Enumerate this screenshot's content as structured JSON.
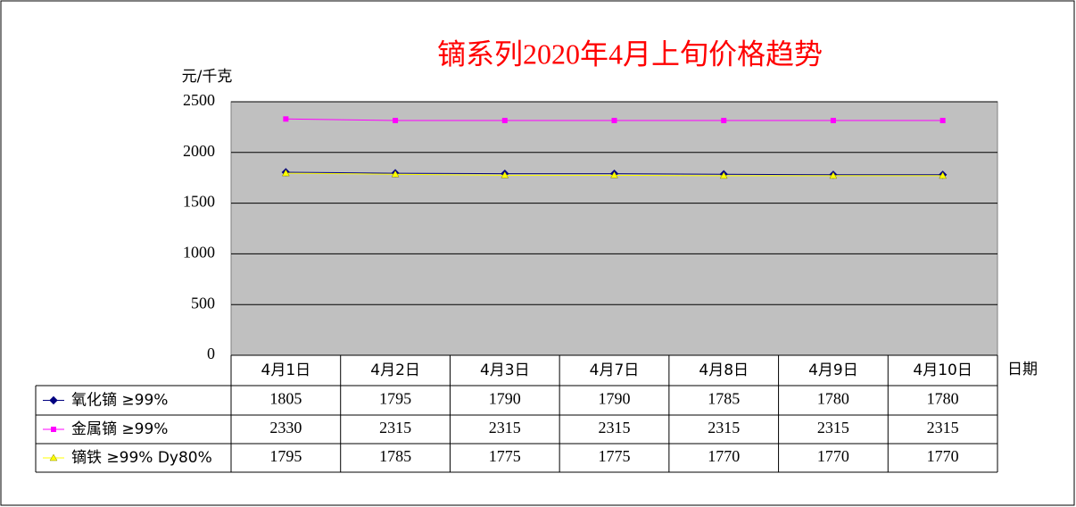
{
  "chart_data": {
    "type": "line",
    "title": "镝系列2020年4月上旬价格趋势",
    "y_label": "元/千克",
    "x_label": "日期",
    "categories": [
      "4月1日",
      "4月2日",
      "4月3日",
      "4月7日",
      "4月8日",
      "4月9日",
      "4月10日"
    ],
    "series": [
      {
        "name": "氧化镝 ≥99%",
        "color": "#000080",
        "marker": "diamond",
        "values": [
          1805,
          1795,
          1790,
          1790,
          1785,
          1780,
          1780
        ]
      },
      {
        "name": "金属镝 ≥99%",
        "color": "#ff00ff",
        "marker": "square",
        "values": [
          2330,
          2315,
          2315,
          2315,
          2315,
          2315,
          2315
        ]
      },
      {
        "name": "镝铁 ≥99% Dy80%",
        "color": "#ffff00",
        "marker": "triangle",
        "values": [
          1795,
          1785,
          1775,
          1775,
          1770,
          1770,
          1770
        ]
      }
    ],
    "ylim": [
      0,
      2500
    ],
    "yticks": [
      0,
      500,
      1000,
      1500,
      2000,
      2500
    ],
    "grid": true,
    "plot_background": "#c0c0c0"
  }
}
